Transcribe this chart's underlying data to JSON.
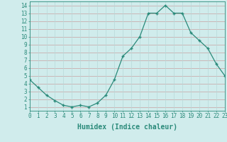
{
  "x": [
    0,
    1,
    2,
    3,
    4,
    5,
    6,
    7,
    8,
    9,
    10,
    11,
    12,
    13,
    14,
    15,
    16,
    17,
    18,
    19,
    20,
    21,
    22,
    23
  ],
  "y": [
    4.5,
    3.5,
    2.5,
    1.8,
    1.2,
    1.0,
    1.2,
    1.0,
    1.5,
    2.5,
    4.5,
    7.5,
    8.5,
    10.0,
    13.0,
    13.0,
    14.0,
    13.0,
    13.0,
    10.5,
    9.5,
    8.5,
    6.5,
    5.0
  ],
  "xlabel": "Humidex (Indice chaleur)",
  "xlim": [
    0,
    23
  ],
  "ylim": [
    0.5,
    14.5
  ],
  "yticks": [
    1,
    2,
    3,
    4,
    5,
    6,
    7,
    8,
    9,
    10,
    11,
    12,
    13,
    14
  ],
  "xticks": [
    0,
    1,
    2,
    3,
    4,
    5,
    6,
    7,
    8,
    9,
    10,
    11,
    12,
    13,
    14,
    15,
    16,
    17,
    18,
    19,
    20,
    21,
    22,
    23
  ],
  "line_color": "#2a8a7a",
  "marker_color": "#2a8a7a",
  "bg_color": "#d0ecec",
  "grid_color_h": "#c8a0a0",
  "grid_color_v": "#b8d8d8",
  "axis_color": "#2a8a7a",
  "label_fontsize": 6.5,
  "tick_fontsize": 5.5,
  "xlabel_fontsize": 7.0
}
